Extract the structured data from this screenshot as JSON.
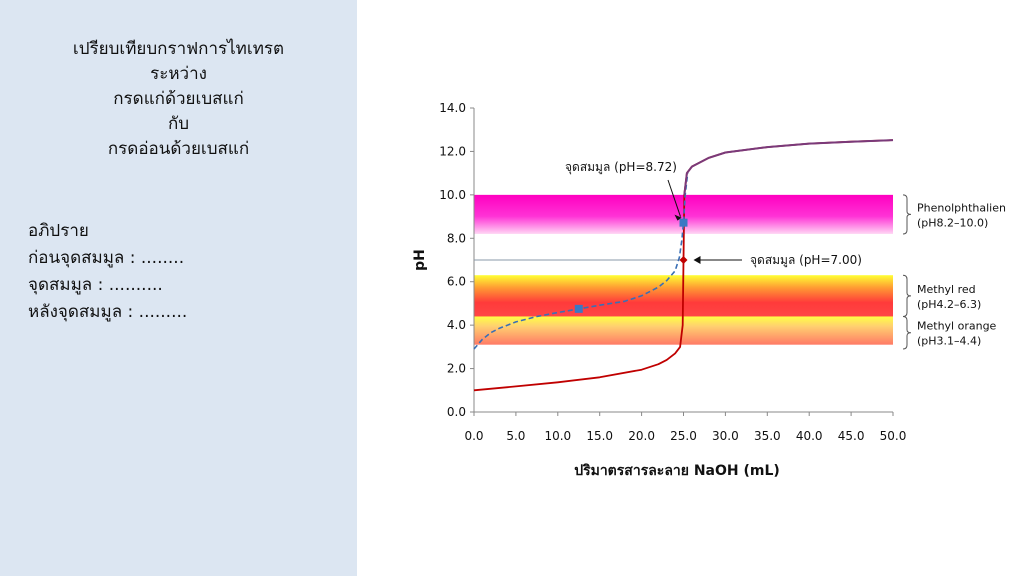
{
  "sidebar": {
    "title_lines": [
      "เปรียบเทียบกราฟการไทเทรต",
      "ระหว่าง",
      "กรดแก่ด้วยเบสแก่",
      "กับ",
      "กรดอ่อนด้วยเบสแก่"
    ],
    "discussion_lines": [
      "อภิปราย",
      "ก่อนจุดสมมูล : ........",
      "จุดสมมูล : ..........",
      "หลังจุดสมมูล : ........."
    ]
  },
  "chart_data": {
    "type": "line",
    "title": "",
    "xlabel": "ปริมาตรสารละลาย NaOH (mL)",
    "ylabel": "pH",
    "xlim": [
      0,
      50
    ],
    "ylim": [
      0,
      14
    ],
    "x_ticks": [
      "0.0",
      "5.0",
      "10.0",
      "15.0",
      "20.0",
      "25.0",
      "30.0",
      "35.0",
      "40.0",
      "45.0",
      "50.0"
    ],
    "y_ticks": [
      "0.0",
      "2.0",
      "4.0",
      "6.0",
      "8.0",
      "10.0",
      "12.0",
      "14.0"
    ],
    "grid": false,
    "series": [
      {
        "name": "",
        "style": "solid",
        "color": "#c00000",
        "points": [
          [
            0,
            1.0
          ],
          [
            5,
            1.18
          ],
          [
            10,
            1.37
          ],
          [
            15,
            1.6
          ],
          [
            20,
            1.95
          ],
          [
            22,
            2.2
          ],
          [
            23,
            2.4
          ],
          [
            24,
            2.7
          ],
          [
            24.6,
            3.0
          ],
          [
            24.9,
            4.0
          ],
          [
            25.0,
            7.0
          ],
          [
            25.1,
            10.0
          ],
          [
            25.4,
            11.0
          ],
          [
            26,
            11.3
          ],
          [
            28,
            11.7
          ],
          [
            30,
            11.95
          ],
          [
            35,
            12.2
          ],
          [
            40,
            12.36
          ],
          [
            45,
            12.45
          ],
          [
            50,
            12.52
          ]
        ]
      },
      {
        "name": "",
        "style": "dashed",
        "color": "#3a6fb5",
        "points": [
          [
            0,
            2.9
          ],
          [
            1,
            3.35
          ],
          [
            2,
            3.65
          ],
          [
            3,
            3.85
          ],
          [
            5,
            4.15
          ],
          [
            7.5,
            4.4
          ],
          [
            10,
            4.58
          ],
          [
            12.5,
            4.75
          ],
          [
            15,
            4.92
          ],
          [
            18,
            5.1
          ],
          [
            20,
            5.35
          ],
          [
            22,
            5.75
          ],
          [
            23,
            6.05
          ],
          [
            24,
            6.5
          ],
          [
            24.5,
            7.1
          ],
          [
            24.8,
            7.9
          ],
          [
            25,
            8.72
          ],
          [
            25.2,
            10.0
          ],
          [
            25.5,
            11.0
          ]
        ]
      }
    ],
    "markers": [
      {
        "x": 12.5,
        "y": 4.75,
        "shape": "square",
        "color": "#3a78c4"
      },
      {
        "x": 25.0,
        "y": 8.72,
        "shape": "square",
        "color": "#3a78c4"
      },
      {
        "x": 25.0,
        "y": 7.0,
        "shape": "diamond",
        "color": "#c00000"
      }
    ],
    "bands": [
      {
        "from": 8.2,
        "to": 10.0,
        "color": "#ff00cc"
      },
      {
        "from": 4.2,
        "to": 6.3,
        "color": "#ff3030"
      },
      {
        "from": 3.1,
        "to": 4.4,
        "color": "#ff8a50"
      }
    ],
    "band_labels": [
      {
        "lines": [
          "Phenolphthalien",
          "(pH8.2–10.0)"
        ],
        "from": 8.2,
        "to": 10.0
      },
      {
        "lines": [
          "Methyl red",
          "(pH4.2–6.3)"
        ],
        "from": 4.4,
        "to": 6.3
      },
      {
        "lines": [
          "Methyl orange",
          "(pH3.1–4.4)"
        ],
        "from": 2.9,
        "to": 4.4
      }
    ],
    "reference_line": {
      "y": 7.0
    },
    "annotations": [
      {
        "text": "จุดสมมูล (pH=8.72)",
        "x": 25.0,
        "y": 8.72
      },
      {
        "text": "จุดสมมูล (pH=7.00)",
        "x": 25.0,
        "y": 7.0
      }
    ]
  }
}
